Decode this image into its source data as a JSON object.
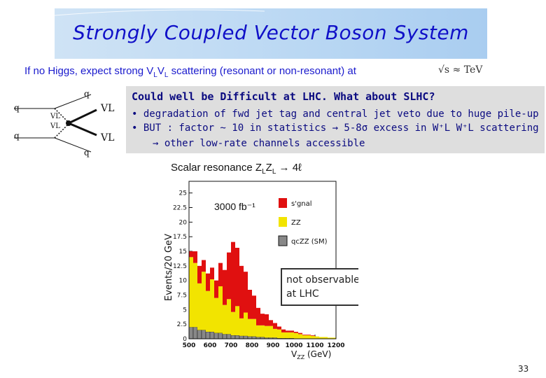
{
  "slide": {
    "title": "Strongly Coupled Vector Boson System",
    "intro_main": "If no Higgs,  expect  strong V",
    "intro_sub1": "L",
    "intro_mid": "V",
    "intro_sub2": "L",
    "intro_tail": " scattering (resonant or  non-resonant) at",
    "sqrt_s": "√s ≈ TeV",
    "page_number": "33"
  },
  "feynman": {
    "q_left_top": "q",
    "q_left_bottom": "q",
    "q_top": "q",
    "q_bottom": "q",
    "vl_out_top": "VL",
    "vl_out_bottom": "VL",
    "vl_in_top": "VL",
    "vl_in_bottom": "VL"
  },
  "comments": {
    "heading": "Could well be Difficult at LHC. What about SLHC?",
    "line1": "• degradation of fwd jet tag and central jet veto due to huge pile-up",
    "line2": "• BUT : factor ~ 10 in statistics → 5-8σ excess in W⁺L W⁺L scattering",
    "line3": "→ other low-rate channels accessible"
  },
  "plot": {
    "title": "Scalar resonance Z",
    "title_sub1": "L",
    "title_mid": "Z",
    "title_sub2": "L",
    "title_tail": " → 4ℓ",
    "ylabel": "Events/20 GeV",
    "xlabel": "V",
    "xlabel_sub": "ZZ",
    "xlabel_tail": " (GeV)",
    "lumi": "3000 fb⁻¹",
    "legend": [
      {
        "label": "s'gnal",
        "color": "#e01010"
      },
      {
        "label": "ZZ",
        "color": "#f2e400"
      },
      {
        "label": "qcZZ (SM)",
        "color": "#888888"
      }
    ],
    "annotation_line1": "not observable",
    "annotation_line2": "at LHC",
    "y_ticks": [
      "25",
      "22.5",
      "20",
      "17.5",
      "15",
      "12.5",
      "10",
      "7.5",
      "5",
      "2.5",
      "0"
    ],
    "x_ticks": [
      "500",
      "600",
      "700",
      "800",
      "900",
      "1000",
      "1100",
      "1200"
    ]
  },
  "chart_data": {
    "type": "bar",
    "title": "Scalar resonance ZLZL → 4ℓ",
    "ylabel": "Events/20 GeV",
    "xlabel": "VZZ (GeV)",
    "xlim": [
      500,
      1200
    ],
    "ylim": [
      0,
      27
    ],
    "bin_width": 20,
    "x": [
      500,
      520,
      540,
      560,
      580,
      600,
      620,
      640,
      660,
      680,
      700,
      720,
      740,
      760,
      780,
      800,
      820,
      840,
      860,
      880,
      900,
      920,
      940,
      960,
      980,
      1000,
      1020,
      1040,
      1060,
      1080,
      1100,
      1120,
      1140,
      1160,
      1180
    ],
    "series": [
      {
        "name": "ZZ",
        "values": [
          12,
          11,
          8,
          10,
          7,
          9,
          6,
          8,
          5,
          6,
          4,
          5,
          3,
          4,
          3,
          3,
          2,
          2,
          2,
          2,
          1.5,
          1.5,
          1,
          1,
          1,
          1,
          0.8,
          0.6,
          0.6,
          0.5,
          0.4,
          0.3,
          0.3,
          0.2,
          0.2
        ]
      },
      {
        "name": "s'gnal",
        "values": [
          1,
          2,
          3,
          2,
          3,
          2,
          3,
          4,
          6,
          8,
          12,
          10,
          9,
          7,
          5,
          4,
          3,
          2,
          2,
          1,
          1,
          0.5,
          0.5,
          0.3,
          0.3,
          0.2,
          0.2,
          0.1,
          0.1,
          0.1,
          0,
          0,
          0,
          0,
          0
        ]
      },
      {
        "name": "qcZZ (SM)",
        "values": [
          2,
          2,
          1.5,
          1.5,
          1.2,
          1.2,
          1,
          1,
          0.8,
          0.8,
          0.6,
          0.6,
          0.5,
          0.5,
          0.4,
          0.4,
          0.3,
          0.3,
          0.2,
          0.2,
          0.2,
          0.1,
          0.1,
          0.1,
          0.1,
          0,
          0,
          0,
          0,
          0,
          0,
          0,
          0,
          0,
          0
        ]
      }
    ]
  }
}
